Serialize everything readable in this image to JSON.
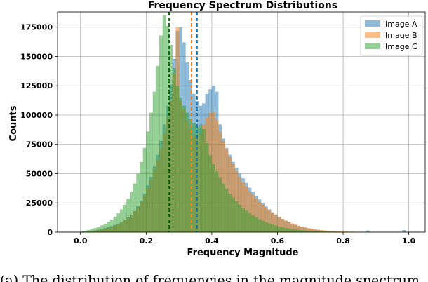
{
  "chart_data": {
    "type": "bar",
    "title": "Frequency Spectrum Distributions",
    "xlabel": "Frequency Magnitude",
    "ylabel": "Counts",
    "xlim": [
      -0.07,
      1.05
    ],
    "ylim": [
      0,
      188000
    ],
    "xticks": [
      0.0,
      0.2,
      0.4,
      0.6,
      0.8,
      1.0
    ],
    "xtick_labels": [
      "0.0",
      "0.2",
      "0.4",
      "0.6",
      "0.8",
      "1.0"
    ],
    "yticks": [
      0,
      25000,
      50000,
      75000,
      100000,
      125000,
      150000,
      175000
    ],
    "ytick_labels": [
      "0",
      "25000",
      "50000",
      "75000",
      "100000",
      "125000",
      "150000",
      "175000"
    ],
    "grid": true,
    "legend_position": "top-right",
    "bin_width": 0.01,
    "series": [
      {
        "name": "Image A",
        "color": "#1f77b4",
        "mean_line": 0.355,
        "peaks": [
          [
            0.295,
            175000
          ],
          [
            0.405,
            125000
          ]
        ],
        "bins": [
          [
            0.0,
            200
          ],
          [
            0.01,
            400
          ],
          [
            0.02,
            700
          ],
          [
            0.03,
            1000
          ],
          [
            0.04,
            1500
          ],
          [
            0.05,
            2100
          ],
          [
            0.06,
            2800
          ],
          [
            0.07,
            3500
          ],
          [
            0.08,
            4300
          ],
          [
            0.09,
            5200
          ],
          [
            0.1,
            6200
          ],
          [
            0.11,
            7400
          ],
          [
            0.12,
            8800
          ],
          [
            0.13,
            10500
          ],
          [
            0.14,
            12500
          ],
          [
            0.15,
            15000
          ],
          [
            0.16,
            18000
          ],
          [
            0.17,
            22000
          ],
          [
            0.18,
            27000
          ],
          [
            0.19,
            33000
          ],
          [
            0.2,
            40000
          ],
          [
            0.21,
            47000
          ],
          [
            0.22,
            56000
          ],
          [
            0.23,
            66000
          ],
          [
            0.24,
            78000
          ],
          [
            0.25,
            92000
          ],
          [
            0.26,
            108000
          ],
          [
            0.27,
            126000
          ],
          [
            0.28,
            148000
          ],
          [
            0.29,
            172000
          ],
          [
            0.3,
            175000
          ],
          [
            0.31,
            162000
          ],
          [
            0.32,
            145000
          ],
          [
            0.33,
            130000
          ],
          [
            0.34,
            118000
          ],
          [
            0.35,
            112000
          ],
          [
            0.36,
            108000
          ],
          [
            0.37,
            110000
          ],
          [
            0.38,
            118000
          ],
          [
            0.39,
            122000
          ],
          [
            0.4,
            125000
          ],
          [
            0.41,
            120000
          ],
          [
            0.42,
            92000
          ],
          [
            0.43,
            80000
          ],
          [
            0.44,
            72000
          ],
          [
            0.45,
            66000
          ],
          [
            0.46,
            60000
          ],
          [
            0.47,
            55000
          ],
          [
            0.48,
            50000
          ],
          [
            0.49,
            46000
          ],
          [
            0.5,
            42000
          ],
          [
            0.51,
            38000
          ],
          [
            0.52,
            34500
          ],
          [
            0.53,
            31000
          ],
          [
            0.54,
            28000
          ],
          [
            0.55,
            25000
          ],
          [
            0.56,
            22000
          ],
          [
            0.57,
            19500
          ],
          [
            0.58,
            17000
          ],
          [
            0.59,
            15000
          ],
          [
            0.6,
            13000
          ],
          [
            0.61,
            11300
          ],
          [
            0.62,
            9800
          ],
          [
            0.63,
            8400
          ],
          [
            0.64,
            7200
          ],
          [
            0.65,
            6100
          ],
          [
            0.66,
            5200
          ],
          [
            0.67,
            4400
          ],
          [
            0.68,
            3700
          ],
          [
            0.69,
            3100
          ],
          [
            0.7,
            2600
          ],
          [
            0.71,
            2100
          ],
          [
            0.72,
            1700
          ],
          [
            0.73,
            1400
          ],
          [
            0.74,
            1100
          ],
          [
            0.75,
            900
          ],
          [
            0.76,
            700
          ],
          [
            0.77,
            550
          ],
          [
            0.78,
            450
          ],
          [
            0.79,
            350
          ],
          [
            0.8,
            300
          ],
          [
            0.81,
            250
          ],
          [
            0.82,
            200
          ],
          [
            0.83,
            160
          ],
          [
            0.84,
            130
          ],
          [
            0.85,
            110
          ],
          [
            0.86,
            100
          ],
          [
            0.87,
            1400
          ],
          [
            0.88,
            90
          ],
          [
            0.89,
            80
          ],
          [
            0.9,
            70
          ],
          [
            0.91,
            60
          ],
          [
            0.92,
            50
          ],
          [
            0.93,
            50
          ],
          [
            0.94,
            40
          ],
          [
            0.95,
            40
          ],
          [
            0.96,
            30
          ],
          [
            0.97,
            30
          ],
          [
            0.98,
            1800
          ],
          [
            0.99,
            20
          ]
        ]
      },
      {
        "name": "Image B",
        "color": "#ff7f0e",
        "mean_line": 0.338,
        "peaks": [
          [
            0.285,
            175000
          ],
          [
            0.395,
            103000
          ]
        ],
        "bins": [
          [
            0.0,
            150
          ],
          [
            0.01,
            300
          ],
          [
            0.02,
            550
          ],
          [
            0.03,
            850
          ],
          [
            0.04,
            1200
          ],
          [
            0.05,
            1700
          ],
          [
            0.06,
            2300
          ],
          [
            0.07,
            3000
          ],
          [
            0.08,
            3800
          ],
          [
            0.09,
            4700
          ],
          [
            0.1,
            5800
          ],
          [
            0.11,
            7000
          ],
          [
            0.12,
            8500
          ],
          [
            0.13,
            10200
          ],
          [
            0.14,
            12300
          ],
          [
            0.15,
            14800
          ],
          [
            0.16,
            17800
          ],
          [
            0.17,
            21500
          ],
          [
            0.18,
            26000
          ],
          [
            0.19,
            31500
          ],
          [
            0.2,
            38000
          ],
          [
            0.21,
            45000
          ],
          [
            0.22,
            53000
          ],
          [
            0.23,
            62000
          ],
          [
            0.24,
            72000
          ],
          [
            0.25,
            84000
          ],
          [
            0.26,
            98000
          ],
          [
            0.27,
            112000
          ],
          [
            0.28,
            135000
          ],
          [
            0.29,
            175000
          ],
          [
            0.3,
            112000
          ],
          [
            0.31,
            105000
          ],
          [
            0.32,
            95000
          ],
          [
            0.33,
            88000
          ],
          [
            0.34,
            82000
          ],
          [
            0.35,
            80000
          ],
          [
            0.36,
            84000
          ],
          [
            0.37,
            92000
          ],
          [
            0.38,
            98000
          ],
          [
            0.39,
            102000
          ],
          [
            0.4,
            103000
          ],
          [
            0.41,
            96000
          ],
          [
            0.42,
            86000
          ],
          [
            0.43,
            78000
          ],
          [
            0.44,
            71000
          ],
          [
            0.45,
            64000
          ],
          [
            0.46,
            58000
          ],
          [
            0.47,
            52000
          ],
          [
            0.48,
            47000
          ],
          [
            0.49,
            43000
          ],
          [
            0.5,
            39000
          ],
          [
            0.51,
            35000
          ],
          [
            0.52,
            32000
          ],
          [
            0.53,
            29000
          ],
          [
            0.54,
            26000
          ],
          [
            0.55,
            23500
          ],
          [
            0.56,
            21000
          ],
          [
            0.57,
            18800
          ],
          [
            0.58,
            16700
          ],
          [
            0.59,
            14800
          ],
          [
            0.6,
            13000
          ],
          [
            0.61,
            11400
          ],
          [
            0.62,
            10000
          ],
          [
            0.63,
            8700
          ],
          [
            0.64,
            7500
          ],
          [
            0.65,
            6500
          ],
          [
            0.66,
            5600
          ],
          [
            0.67,
            4800
          ],
          [
            0.68,
            4100
          ],
          [
            0.69,
            3500
          ],
          [
            0.7,
            3000
          ],
          [
            0.71,
            2500
          ],
          [
            0.72,
            2100
          ],
          [
            0.73,
            1800
          ],
          [
            0.74,
            1500
          ],
          [
            0.75,
            1250
          ],
          [
            0.76,
            1050
          ],
          [
            0.77,
            880
          ],
          [
            0.78,
            740
          ],
          [
            0.79,
            620
          ],
          [
            0.8,
            520
          ],
          [
            0.81,
            430
          ],
          [
            0.82,
            360
          ],
          [
            0.83,
            300
          ],
          [
            0.84,
            250
          ],
          [
            0.85,
            210
          ],
          [
            0.86,
            180
          ],
          [
            0.87,
            150
          ],
          [
            0.88,
            130
          ],
          [
            0.89,
            110
          ],
          [
            0.9,
            95
          ],
          [
            0.91,
            80
          ],
          [
            0.92,
            70
          ],
          [
            0.93,
            60
          ],
          [
            0.94,
            50
          ],
          [
            0.95,
            45
          ],
          [
            0.96,
            40
          ],
          [
            0.97,
            35
          ],
          [
            0.98,
            30
          ],
          [
            0.99,
            25
          ]
        ]
      },
      {
        "name": "Image C",
        "color": "#2ca02c",
        "mean_line": 0.27,
        "peaks": [
          [
            0.245,
            185000
          ]
        ],
        "bins": [
          [
            0.0,
            600
          ],
          [
            0.01,
            1200
          ],
          [
            0.02,
            1900
          ],
          [
            0.03,
            2700
          ],
          [
            0.04,
            3600
          ],
          [
            0.05,
            4600
          ],
          [
            0.06,
            5800
          ],
          [
            0.07,
            7200
          ],
          [
            0.08,
            8800
          ],
          [
            0.09,
            10800
          ],
          [
            0.1,
            13200
          ],
          [
            0.11,
            16000
          ],
          [
            0.12,
            19500
          ],
          [
            0.13,
            23500
          ],
          [
            0.14,
            28500
          ],
          [
            0.15,
            34500
          ],
          [
            0.16,
            41500
          ],
          [
            0.17,
            50000
          ],
          [
            0.18,
            60000
          ],
          [
            0.19,
            72000
          ],
          [
            0.2,
            86000
          ],
          [
            0.21,
            102000
          ],
          [
            0.22,
            120000
          ],
          [
            0.23,
            142000
          ],
          [
            0.24,
            168000
          ],
          [
            0.25,
            185000
          ],
          [
            0.26,
            176000
          ],
          [
            0.27,
            160000
          ],
          [
            0.28,
            140000
          ],
          [
            0.29,
            125000
          ],
          [
            0.3,
            115000
          ],
          [
            0.31,
            108000
          ],
          [
            0.32,
            102000
          ],
          [
            0.33,
            97000
          ],
          [
            0.34,
            93000
          ],
          [
            0.35,
            90000
          ],
          [
            0.36,
            92000
          ],
          [
            0.37,
            88000
          ],
          [
            0.38,
            76000
          ],
          [
            0.39,
            66000
          ],
          [
            0.4,
            58000
          ],
          [
            0.41,
            52000
          ],
          [
            0.42,
            46500
          ],
          [
            0.43,
            41500
          ],
          [
            0.44,
            37000
          ],
          [
            0.45,
            33000
          ],
          [
            0.46,
            29500
          ],
          [
            0.47,
            26300
          ],
          [
            0.48,
            23400
          ],
          [
            0.49,
            20800
          ],
          [
            0.5,
            18400
          ],
          [
            0.51,
            16300
          ],
          [
            0.52,
            14400
          ],
          [
            0.53,
            12700
          ],
          [
            0.54,
            11200
          ],
          [
            0.55,
            9800
          ],
          [
            0.56,
            8600
          ],
          [
            0.57,
            7500
          ],
          [
            0.58,
            6500
          ],
          [
            0.59,
            5700
          ],
          [
            0.6,
            4900
          ],
          [
            0.61,
            4200
          ],
          [
            0.62,
            3600
          ],
          [
            0.63,
            3100
          ],
          [
            0.64,
            2650
          ],
          [
            0.65,
            2250
          ],
          [
            0.66,
            1900
          ],
          [
            0.67,
            1600
          ],
          [
            0.68,
            1350
          ],
          [
            0.69,
            1130
          ],
          [
            0.7,
            950
          ],
          [
            0.71,
            790
          ],
          [
            0.72,
            660
          ],
          [
            0.73,
            550
          ],
          [
            0.74,
            460
          ],
          [
            0.75,
            380
          ],
          [
            0.76,
            320
          ],
          [
            0.77,
            260
          ],
          [
            0.78,
            220
          ],
          [
            0.79,
            180
          ],
          [
            0.8,
            150
          ],
          [
            0.81,
            120
          ],
          [
            0.82,
            100
          ],
          [
            0.83,
            85
          ],
          [
            0.84,
            70
          ],
          [
            0.85,
            60
          ],
          [
            0.86,
            50
          ],
          [
            0.87,
            40
          ],
          [
            0.88,
            35
          ],
          [
            0.89,
            30
          ],
          [
            0.9,
            25
          ],
          [
            0.91,
            20
          ],
          [
            0.92,
            18
          ],
          [
            0.93,
            15
          ],
          [
            0.94,
            12
          ],
          [
            0.95,
            10
          ],
          [
            0.96,
            9
          ],
          [
            0.97,
            8
          ],
          [
            0.98,
            6
          ],
          [
            0.99,
            5
          ]
        ]
      }
    ]
  },
  "caption": "(a) The distribution of frequencies in the magnitude spectrum"
}
